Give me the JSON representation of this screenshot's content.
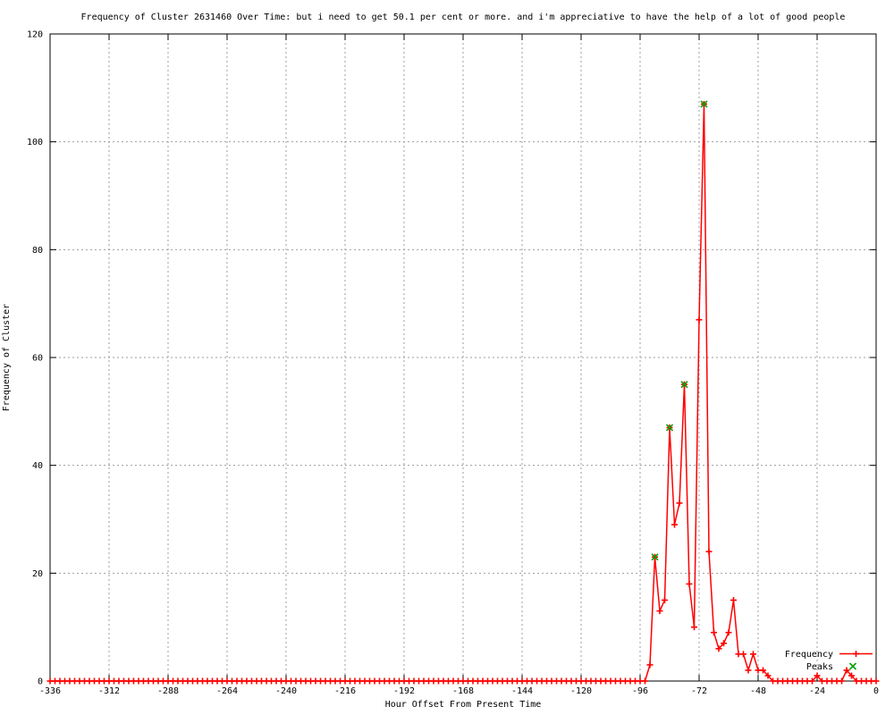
{
  "title": "Frequency of Cluster 2631460 Over Time: but i need to get 50.1 per cent or more. and i'm appreciative to have the help of a lot of good people",
  "colors": {
    "background": "#ffffff",
    "border": "#000000",
    "grid": "#9e9e9e",
    "text": "#000000",
    "frequency_series": "#ff0000",
    "peaks_series": "#00a000"
  },
  "chart_data": {
    "type": "line",
    "title": "Frequency of Cluster 2631460 Over Time: but i need to get 50.1 per cent or more. and i'm appreciative to have the help of a lot of good people",
    "xlabel": "Hour Offset From Present Time",
    "ylabel": "Frequency of Cluster",
    "xlim": [
      -336,
      0
    ],
    "ylim": [
      0,
      120
    ],
    "x_ticks": [
      -336,
      -312,
      -288,
      -264,
      -240,
      -216,
      -192,
      -168,
      -144,
      -120,
      -96,
      -72,
      -48,
      -24,
      0
    ],
    "y_ticks": [
      0,
      20,
      40,
      60,
      80,
      100,
      120
    ],
    "grid": true,
    "legend_position": "bottom-right",
    "legend": [
      {
        "label": "Frequency"
      },
      {
        "label": "Peaks"
      }
    ],
    "series": [
      {
        "name": "Frequency",
        "color": "#ff0000",
        "marker": "plus",
        "line": true,
        "x_start": -336,
        "x_end": 0,
        "x_step": 2,
        "baseline_value": 0,
        "nonzero": {
          "-92": 3,
          "-90": 23,
          "-88": 13,
          "-86": 15,
          "-84": 47,
          "-82": 29,
          "-80": 33,
          "-78": 55,
          "-76": 18,
          "-74": 10,
          "-72": 67,
          "-70": 107,
          "-68": 24,
          "-66": 9,
          "-64": 6,
          "-62": 7,
          "-60": 9,
          "-58": 15,
          "-56": 5,
          "-54": 5,
          "-52": 2,
          "-50": 5,
          "-48": 2,
          "-46": 2,
          "-44": 1,
          "-24": 1,
          "-12": 2,
          "-10": 1
        }
      },
      {
        "name": "Peaks",
        "color": "#00a000",
        "marker": "cross",
        "line": false,
        "x": [
          -90,
          -84,
          -78,
          -70
        ],
        "y": [
          23,
          47,
          55,
          107
        ]
      }
    ]
  }
}
